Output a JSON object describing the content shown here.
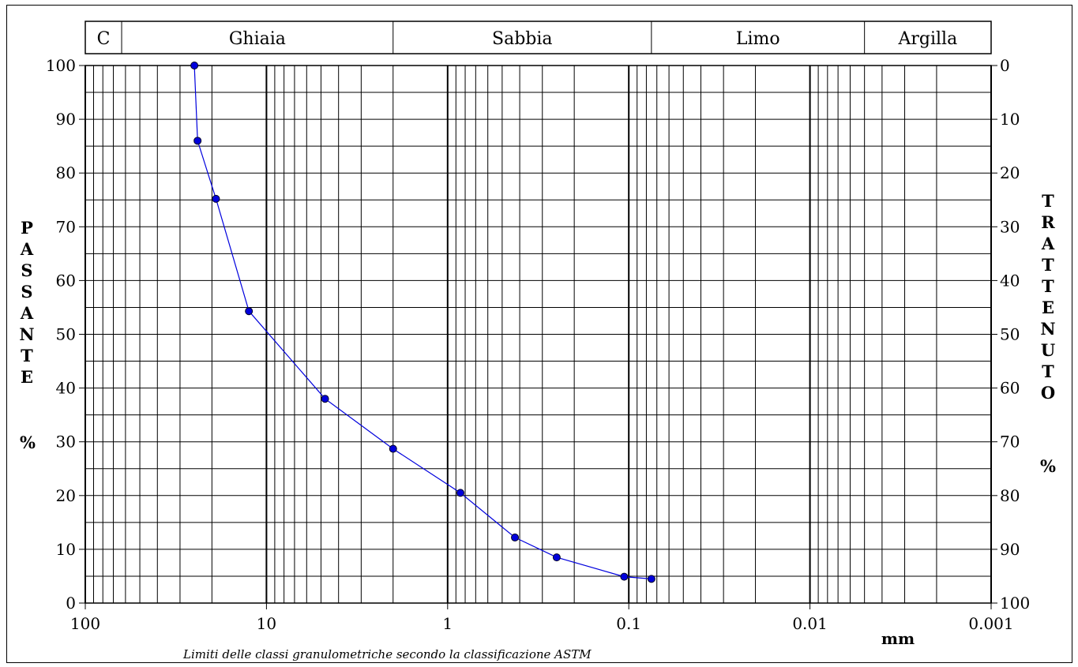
{
  "chart_data": {
    "type": "line",
    "x_scale": "log",
    "x_reversed": true,
    "xlim": [
      100,
      0.001
    ],
    "ylim": [
      0,
      100
    ],
    "grid": true,
    "xlabel": "mm",
    "ylabel_left": "PASSANTE",
    "ylabel_left_unit": "%",
    "ylabel_right": "TRATTENUTO",
    "ylabel_right_unit": "%",
    "x_ticks": [
      "100",
      "10",
      "1",
      "0.1",
      "0.01",
      "0.001"
    ],
    "y_ticks_left": [
      "0",
      "10",
      "20",
      "30",
      "40",
      "50",
      "60",
      "70",
      "80",
      "90",
      "100"
    ],
    "y_ticks_right": [
      "100",
      "90",
      "80",
      "70",
      "60",
      "50",
      "40",
      "30",
      "20",
      "10",
      "0"
    ],
    "classes": [
      {
        "label": "C",
        "from": 100,
        "to": 63
      },
      {
        "label": "Ghiaia",
        "from": 63,
        "to": 2
      },
      {
        "label": "Sabbia",
        "from": 2,
        "to": 0.075
      },
      {
        "label": "Limo",
        "from": 0.075,
        "to": 0.005
      },
      {
        "label": "Argilla",
        "from": 0.005,
        "to": 0.001
      }
    ],
    "footnote": "Limiti delle classi granulometriche secondo la classificazione ASTM",
    "series": [
      {
        "color": "#0000dd",
        "x": [
          25,
          24,
          19,
          12.5,
          4.75,
          2,
          0.85,
          0.425,
          0.25,
          0.106,
          0.075
        ],
        "y": [
          100,
          86,
          75.2,
          54.3,
          38,
          28.7,
          20.5,
          12.2,
          8.5,
          4.9,
          4.5
        ]
      }
    ]
  }
}
